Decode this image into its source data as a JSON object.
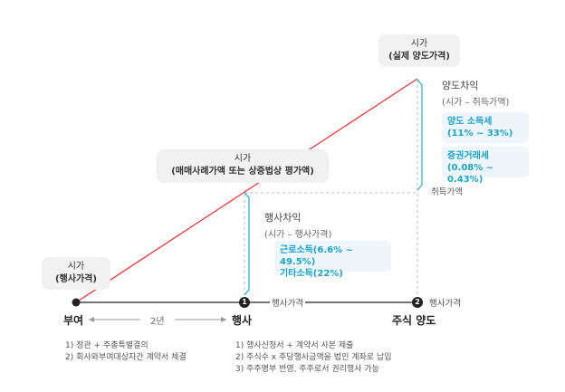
{
  "boxes": {
    "gift_price": {
      "line1": "시가",
      "line2": "(행사가격)"
    },
    "exercise_price": {
      "line1": "시가",
      "line2": "(매매사례가액 또는 상증법상 평가액)"
    },
    "transfer_price": {
      "line1": "시가",
      "line2": "(실제 양도가격)"
    }
  },
  "exercise_gain": {
    "title": "행사차익",
    "formula": "(시가 – 행사가격)",
    "tax1": "근로소득(6.6% ~ 49.5%)",
    "tax2": "기타소득(22%)"
  },
  "transfer_gain": {
    "title": "양도차익",
    "formula": "(시가 – 취득가액)",
    "tax1_label": "양도 소득세",
    "tax1_rate": "(11% ~ 33%)",
    "tax2_label": "증권거래세",
    "tax2_rate": "(0.08% ~ 0.43%)"
  },
  "acquisition_label": "취득가액",
  "axis": {
    "exercise_price_label_1": "행사가격",
    "exercise_price_label_2": "행사가격",
    "step1_num": "1",
    "step2_num": "2"
  },
  "stages": {
    "grant": "부여",
    "duration": "2년",
    "exercise": "행사",
    "transfer": "주식 양도"
  },
  "notes": {
    "grant": [
      "1)  정관 + 주총특별결의",
      "2)  회사와부여대상자간 계약서 체결"
    ],
    "exercise": [
      "1)  행사신청서 + 계약서 사본 제출",
      "2)  주식수 x 주당행사금액을 법인 계좌로 납입",
      "3)  주주명부 반영, 주주로서 권리행사 가능"
    ]
  },
  "colors": {
    "red_line": "#e8383d",
    "teal": "#29b6d1",
    "dark": "#222222",
    "dashed": "#bbbbbb"
  }
}
